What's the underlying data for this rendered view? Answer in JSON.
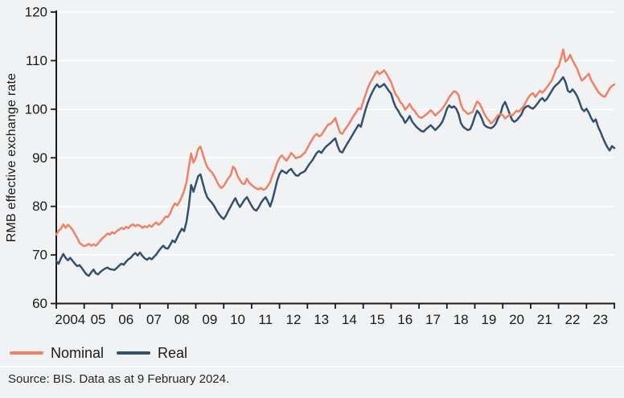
{
  "source_note": "Source: BIS. Data as at 9 February 2024.",
  "colors": {
    "background": "#f1f2f3",
    "gridline": "#ffffff",
    "axis": "#1a1a1a",
    "nominal": "#ee8266",
    "real": "#33506e"
  },
  "chart_data": {
    "type": "line",
    "title": "",
    "xlabel": "",
    "ylabel": "RMB effective exchange rate",
    "ylim": [
      60,
      120
    ],
    "y_ticks": [
      60,
      70,
      80,
      90,
      100,
      110,
      120
    ],
    "x_start_year": 2004,
    "x_end_year": 2024,
    "x_tick_labels": [
      "2004",
      "05",
      "06",
      "07",
      "08",
      "09",
      "10",
      "11",
      "12",
      "13",
      "14",
      "15",
      "16",
      "17",
      "18",
      "19",
      "20",
      "21",
      "22",
      "23"
    ],
    "frequency": "monthly",
    "first_point": "2004-01",
    "last_point": "2024-01",
    "grid": "horizontal white gridlines on grey background",
    "legend_position": "bottom-left",
    "axis_color": "#1a1a1a",
    "series": [
      {
        "name": "Nominal",
        "color": "#ee8266",
        "values": [
          74.2,
          75.0,
          75.4,
          76.3,
          75.6,
          76.2,
          75.8,
          75.2,
          74.3,
          73.5,
          72.5,
          72.1,
          71.8,
          72.0,
          72.3,
          71.9,
          72.2,
          71.9,
          72.4,
          73.0,
          73.5,
          73.9,
          74.4,
          74.2,
          74.7,
          74.4,
          74.9,
          75.2,
          75.6,
          75.3,
          75.8,
          75.5,
          76.0,
          76.3,
          75.9,
          76.2,
          76.0,
          75.6,
          75.9,
          75.7,
          76.1,
          75.8,
          76.3,
          76.7,
          76.2,
          76.6,
          77.2,
          77.9,
          77.8,
          78.6,
          79.8,
          80.6,
          80.2,
          81.0,
          82.0,
          83.2,
          85.0,
          88.0,
          90.9,
          89.0,
          90.0,
          91.8,
          92.3,
          90.8,
          89.2,
          88.0,
          87.4,
          87.0,
          86.2,
          85.2,
          84.3,
          83.8,
          84.2,
          85.0,
          85.8,
          86.4,
          88.2,
          87.6,
          86.2,
          85.4,
          84.7,
          84.6,
          85.7,
          84.9,
          84.4,
          84.0,
          83.7,
          83.5,
          83.8,
          83.4,
          83.6,
          84.2,
          85.0,
          86.4,
          87.6,
          89.0,
          90.0,
          90.5,
          89.9,
          89.4,
          90.1,
          91.0,
          90.5,
          89.9,
          90.1,
          90.2,
          90.7,
          91.1,
          92.0,
          92.9,
          93.7,
          94.5,
          94.9,
          94.4,
          94.7,
          95.4,
          96.2,
          96.9,
          97.0,
          97.5,
          98.2,
          96.6,
          95.2,
          94.9,
          95.7,
          96.4,
          97.1,
          97.9,
          98.7,
          99.4,
          100.2,
          100.0,
          101.6,
          103.0,
          104.4,
          105.5,
          106.3,
          107.2,
          107.8,
          107.2,
          107.6,
          108.0,
          107.3,
          106.4,
          105.6,
          104.2,
          103.0,
          102.4,
          101.4,
          100.9,
          99.9,
          100.4,
          101.1,
          100.2,
          99.7,
          99.0,
          98.4,
          98.2,
          98.5,
          98.9,
          99.3,
          99.8,
          99.3,
          98.7,
          99.2,
          99.6,
          100.1,
          100.8,
          101.6,
          102.5,
          103.1,
          103.7,
          103.5,
          102.9,
          101.0,
          99.9,
          99.5,
          99.0,
          99.2,
          99.4,
          100.5,
          101.6,
          101.2,
          100.2,
          99.1,
          98.3,
          97.7,
          97.1,
          97.5,
          98.1,
          98.8,
          99.0,
          98.8,
          98.1,
          98.5,
          98.9,
          98.7,
          99.2,
          99.7,
          99.5,
          100.1,
          100.6,
          101.5,
          102.4,
          103.0,
          103.3,
          102.5,
          103.2,
          103.8,
          103.4,
          103.9,
          104.5,
          105.2,
          105.8,
          107.0,
          108.3,
          108.8,
          110.4,
          112.3,
          109.8,
          110.3,
          111.2,
          110.1,
          109.2,
          108.4,
          107.0,
          105.9,
          106.3,
          106.8,
          107.3,
          106.0,
          105.2,
          104.4,
          103.6,
          103.1,
          102.7,
          102.6,
          103.4,
          104.3,
          104.8,
          105.1
        ]
      },
      {
        "name": "Real",
        "color": "#33506e",
        "values": [
          68.7,
          68.2,
          69.3,
          70.2,
          69.4,
          68.9,
          69.4,
          68.8,
          68.2,
          67.7,
          67.9,
          67.3,
          66.6,
          66.0,
          65.7,
          66.4,
          67.0,
          66.2,
          66.0,
          66.5,
          66.9,
          67.2,
          67.4,
          67.1,
          67.0,
          66.9,
          67.3,
          67.8,
          68.2,
          68.0,
          68.6,
          69.1,
          69.4,
          70.0,
          70.4,
          69.9,
          70.5,
          69.8,
          69.3,
          69.0,
          69.4,
          69.1,
          69.6,
          70.1,
          70.8,
          71.4,
          71.9,
          71.4,
          71.3,
          72.1,
          73.0,
          72.6,
          73.6,
          74.6,
          75.4,
          74.9,
          76.8,
          80.0,
          84.4,
          83.0,
          84.6,
          86.2,
          86.6,
          84.8,
          83.0,
          81.8,
          81.2,
          80.7,
          80.0,
          79.1,
          78.4,
          77.8,
          77.4,
          78.1,
          79.1,
          80.0,
          80.9,
          81.7,
          80.6,
          79.9,
          80.6,
          81.4,
          81.9,
          81.0,
          80.1,
          79.4,
          79.1,
          79.8,
          80.7,
          81.4,
          81.9,
          81.0,
          80.0,
          81.4,
          83.3,
          85.3,
          86.7,
          87.4,
          87.1,
          86.8,
          87.4,
          87.7,
          87.0,
          86.4,
          86.3,
          86.8,
          87.0,
          87.3,
          88.1,
          88.8,
          89.4,
          90.2,
          91.0,
          91.4,
          91.0,
          91.7,
          92.3,
          92.7,
          93.1,
          93.6,
          94.0,
          92.4,
          91.3,
          91.1,
          92.0,
          92.8,
          93.6,
          94.4,
          95.2,
          96.0,
          96.8,
          96.4,
          98.2,
          99.9,
          101.4,
          102.6,
          103.6,
          104.5,
          105.1,
          104.5,
          104.8,
          105.2,
          104.5,
          103.8,
          103.2,
          101.6,
          100.4,
          99.7,
          98.8,
          98.2,
          97.2,
          97.8,
          98.6,
          97.5,
          96.9,
          96.3,
          95.9,
          95.5,
          95.4,
          95.9,
          96.3,
          96.7,
          96.2,
          95.7,
          96.2,
          96.7,
          97.4,
          98.6,
          100.1,
          100.8,
          100.3,
          100.6,
          100.1,
          99.0,
          97.2,
          96.4,
          96.0,
          95.7,
          95.9,
          97.0,
          98.5,
          99.7,
          99.1,
          98.1,
          96.8,
          96.4,
          96.2,
          96.1,
          96.4,
          97.0,
          98.1,
          99.0,
          100.7,
          101.5,
          100.3,
          99.0,
          97.8,
          97.4,
          97.7,
          98.3,
          98.9,
          100.0,
          100.5,
          100.7,
          100.3,
          100.1,
          100.6,
          101.2,
          101.9,
          102.3,
          101.7,
          102.1,
          102.9,
          103.7,
          104.5,
          105.0,
          105.4,
          106.0,
          106.6,
          105.6,
          103.8,
          103.5,
          104.1,
          103.5,
          102.7,
          101.5,
          100.1,
          99.6,
          100.1,
          99.3,
          98.2,
          97.4,
          97.9,
          96.4,
          95.4,
          94.2,
          93.1,
          92.2,
          91.5,
          92.4,
          92.0
        ]
      }
    ]
  }
}
